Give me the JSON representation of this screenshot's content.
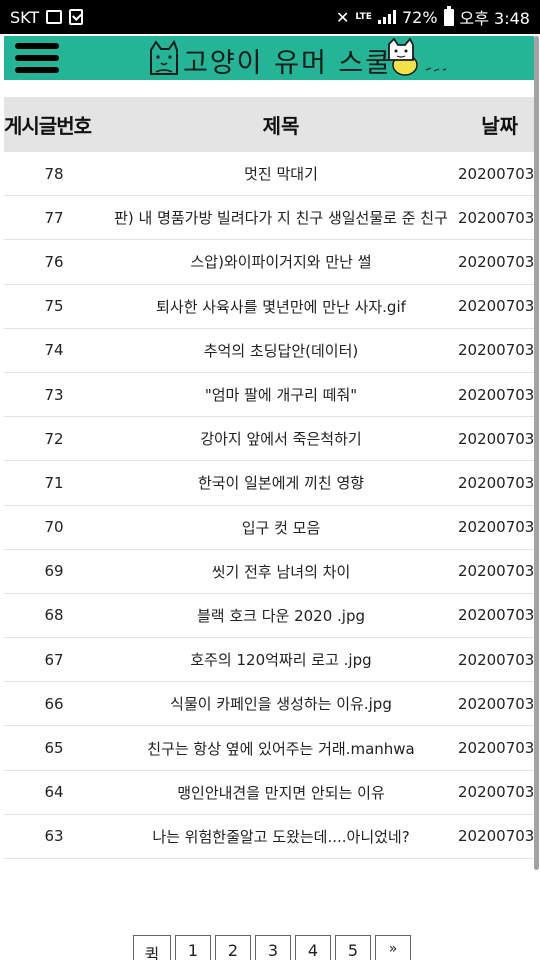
{
  "status_bar": {
    "carrier": "SKT",
    "network": "LTE",
    "battery": "72%",
    "time": "오후 3:48"
  },
  "header": {
    "logo_text": "고양이 유머 스쿨",
    "menu_icon": "hamburger-menu-icon",
    "brand_color": "#23b596"
  },
  "table": {
    "headers": {
      "num": "게시글번호",
      "title": "제목",
      "date": "날짜"
    },
    "rows": [
      {
        "num": "78",
        "title": "멋진 막대기",
        "date": "20200703"
      },
      {
        "num": "77",
        "title": "판) 내 명품가방 빌려다가 지 친구 생일선물로 준 친구",
        "date": "20200703"
      },
      {
        "num": "76",
        "title": "스압)와이파이거지와 만난 썰",
        "date": "20200703"
      },
      {
        "num": "75",
        "title": "퇴사한 사육사를 몇년만에 만난 사자.gif",
        "date": "20200703"
      },
      {
        "num": "74",
        "title": "추억의 초딩답안(데이터)",
        "date": "20200703"
      },
      {
        "num": "73",
        "title": "\"엄마 팔에 개구리 떼줘\"",
        "date": "20200703"
      },
      {
        "num": "72",
        "title": "강아지 앞에서 죽은척하기",
        "date": "20200703"
      },
      {
        "num": "71",
        "title": "한국이 일본에게 끼친 영향",
        "date": "20200703"
      },
      {
        "num": "70",
        "title": "입구 컷 모음",
        "date": "20200703"
      },
      {
        "num": "69",
        "title": "씻기 전후 남녀의 차이",
        "date": "20200703"
      },
      {
        "num": "68",
        "title": "블랙 호크 다운 2020 .jpg",
        "date": "20200703"
      },
      {
        "num": "67",
        "title": "호주의 120억짜리 로고 .jpg",
        "date": "20200703"
      },
      {
        "num": "66",
        "title": "식물이 카페인을 생성하는 이유.jpg",
        "date": "20200703"
      },
      {
        "num": "65",
        "title": "친구는 항상 옆에 있어주는 거래.manhwa",
        "date": "20200703"
      },
      {
        "num": "64",
        "title": "맹인안내견을 만지면 안되는 이유",
        "date": "20200703"
      },
      {
        "num": "63",
        "title": "나는 위험한줄알고 도왔는데....아니었네?",
        "date": "20200703"
      }
    ]
  },
  "pagination": {
    "first": "퀵",
    "pages": [
      "1",
      "2",
      "3",
      "4",
      "5"
    ],
    "next": "»"
  }
}
